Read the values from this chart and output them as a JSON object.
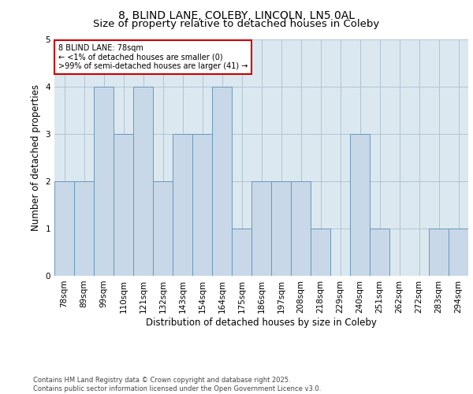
{
  "title_line1": "8, BLIND LANE, COLEBY, LINCOLN, LN5 0AL",
  "title_line2": "Size of property relative to detached houses in Coleby",
  "xlabel": "Distribution of detached houses by size in Coleby",
  "ylabel": "Number of detached properties",
  "categories": [
    "78sqm",
    "89sqm",
    "99sqm",
    "110sqm",
    "121sqm",
    "132sqm",
    "143sqm",
    "154sqm",
    "164sqm",
    "175sqm",
    "186sqm",
    "197sqm",
    "208sqm",
    "218sqm",
    "229sqm",
    "240sqm",
    "251sqm",
    "262sqm",
    "272sqm",
    "283sqm",
    "294sqm"
  ],
  "values": [
    2,
    2,
    4,
    3,
    4,
    2,
    3,
    3,
    4,
    1,
    2,
    2,
    2,
    1,
    0,
    3,
    1,
    0,
    0,
    1,
    1
  ],
  "bar_color": "#c8d8e8",
  "bar_edge_color": "#6699bb",
  "bg_color": "#dce8f0",
  "annotation_box_text": "8 BLIND LANE: 78sqm\n← <1% of detached houses are smaller (0)\n>99% of semi-detached houses are larger (41) →",
  "annotation_box_color": "#ffffff",
  "annotation_box_edge_color": "#cc0000",
  "ylim": [
    0,
    5
  ],
  "yticks": [
    0,
    1,
    2,
    3,
    4,
    5
  ],
  "footer_text": "Contains HM Land Registry data © Crown copyright and database right 2025.\nContains public sector information licensed under the Open Government Licence v3.0.",
  "grid_color": "#b0c4d4",
  "title_fontsize": 10,
  "subtitle_fontsize": 9.5,
  "ylabel_fontsize": 8.5,
  "xlabel_fontsize": 8.5,
  "tick_fontsize": 7.5,
  "annot_fontsize": 7,
  "footer_fontsize": 6
}
